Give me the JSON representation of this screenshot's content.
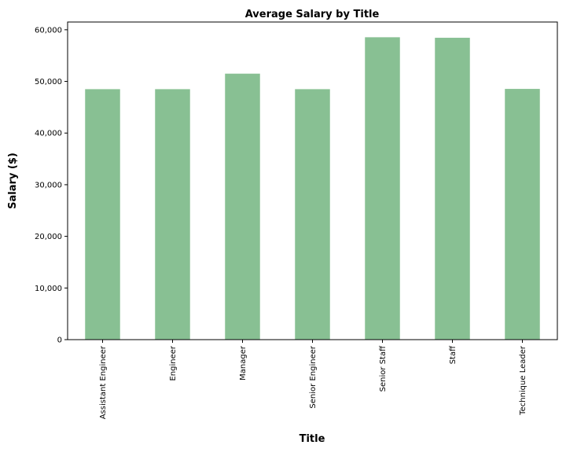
{
  "chart_data": {
    "type": "bar",
    "title": "Average Salary by Title",
    "xlabel": "Title",
    "ylabel": "Salary ($)",
    "categories": [
      "Assistant Engineer",
      "Engineer",
      "Manager",
      "Senior Engineer",
      "Senior Staff",
      "Staff",
      "Technique Leader"
    ],
    "values": [
      48500,
      48500,
      51500,
      48500,
      58550,
      58450,
      48550
    ],
    "ylim": [
      0,
      61500
    ],
    "yticks": [
      0,
      10000,
      20000,
      30000,
      40000,
      50000,
      60000
    ],
    "ytick_labels": [
      "0",
      "10,000",
      "20,000",
      "30,000",
      "40,000",
      "50,000",
      "60,000"
    ],
    "grid": false,
    "legend": "none",
    "bar_color": "#88c093",
    "x_tick_rotation": "vertical"
  }
}
